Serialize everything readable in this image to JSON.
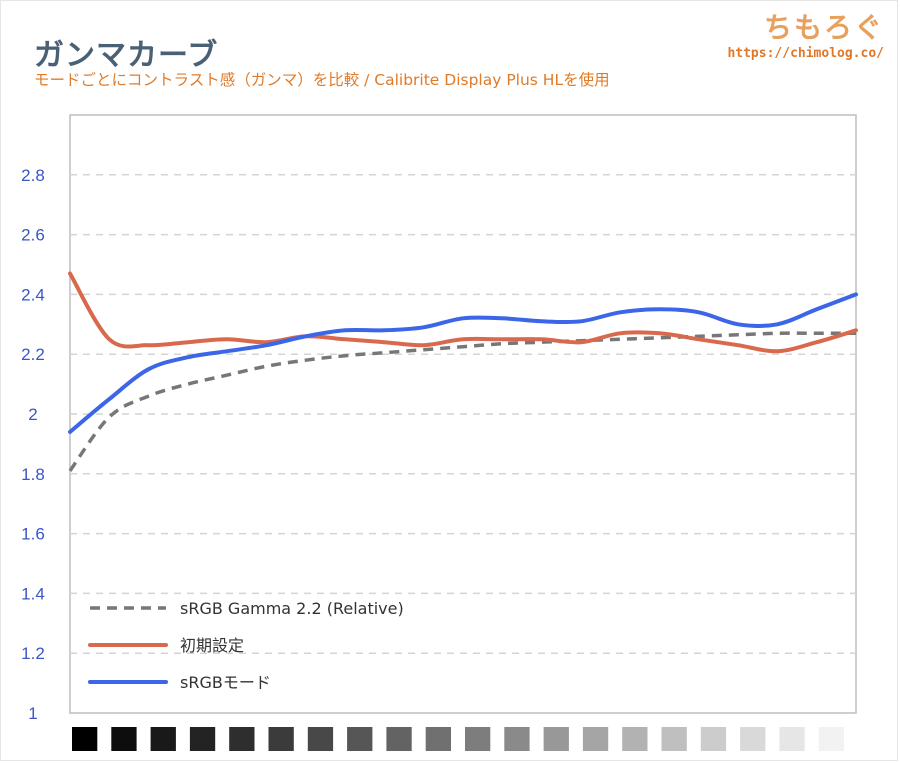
{
  "header": {
    "title": "ガンマカーブ",
    "subtitle": "モードごとにコントラスト感（ガンマ）を比較 / Calibrite Display Plus HLを使用"
  },
  "brand": {
    "name": "ちもろぐ",
    "url": "https://chimolog.co/"
  },
  "chart_data": {
    "type": "line",
    "ylim": [
      1,
      3
    ],
    "yticks": [
      "2.8",
      "2.6",
      "2.4",
      "2.2",
      "2",
      "1.8",
      "1.6",
      "1.4",
      "1.2",
      "1"
    ],
    "grid": true,
    "legend_position": "bottom-left",
    "x": [
      0,
      5,
      10,
      15,
      20,
      25,
      30,
      35,
      40,
      45,
      50,
      55,
      60,
      65,
      70,
      75,
      80,
      85,
      90,
      95,
      100
    ],
    "series": [
      {
        "name": "sRGB Gamma 2.2 (Relative)",
        "color": "#777777",
        "dash": true,
        "values": [
          1.81,
          1.99,
          2.06,
          2.1,
          2.13,
          2.16,
          2.18,
          2.195,
          2.205,
          2.215,
          2.225,
          2.235,
          2.24,
          2.245,
          2.25,
          2.255,
          2.26,
          2.265,
          2.27,
          2.27,
          2.27
        ]
      },
      {
        "name": "初期設定",
        "color": "#d9694d",
        "dash": false,
        "values": [
          2.47,
          2.25,
          2.23,
          2.24,
          2.25,
          2.24,
          2.26,
          2.25,
          2.24,
          2.23,
          2.25,
          2.25,
          2.25,
          2.24,
          2.27,
          2.27,
          2.25,
          2.23,
          2.21,
          2.24,
          2.28
        ]
      },
      {
        "name": "sRGBモード",
        "color": "#3b66e8",
        "dash": false,
        "values": [
          1.94,
          2.05,
          2.15,
          2.19,
          2.21,
          2.23,
          2.26,
          2.28,
          2.28,
          2.29,
          2.32,
          2.32,
          2.31,
          2.31,
          2.34,
          2.35,
          2.34,
          2.3,
          2.3,
          2.35,
          2.4
        ]
      }
    ],
    "gray_swatches": [
      "#000000",
      "#0d0d0d",
      "#191919",
      "#232323",
      "#2e2e2e",
      "#3b3b3b",
      "#484848",
      "#565656",
      "#636363",
      "#707070",
      "#7d7d7d",
      "#8a8a8a",
      "#989898",
      "#a5a5a5",
      "#b2b2b2",
      "#bfbfbf",
      "#cccccc",
      "#d9d9d9",
      "#e6e6e6",
      "#f2f2f2"
    ]
  }
}
